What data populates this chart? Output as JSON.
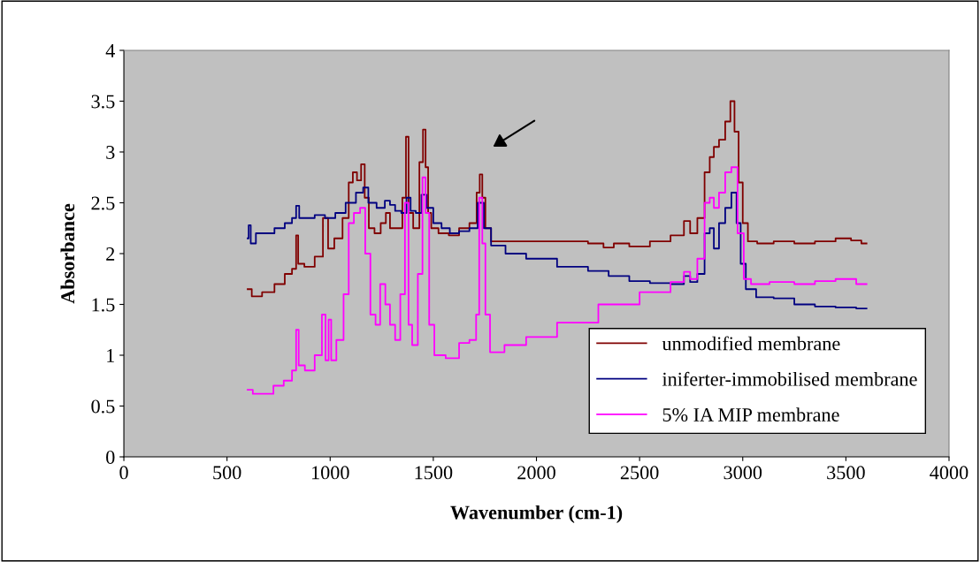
{
  "chart_data": {
    "type": "step",
    "xlabel": "Wavenumber (cm-1)",
    "ylabel": "Absorbance",
    "xlim": [
      0,
      4000
    ],
    "xticks": [
      0,
      500,
      1000,
      1500,
      2000,
      2500,
      3000,
      3500,
      4000
    ],
    "ylim": [
      0,
      4
    ],
    "yticks": [
      0,
      0.5,
      1,
      1.5,
      2,
      2.5,
      3,
      3.5,
      4
    ],
    "grid": false,
    "legend": "bottom right",
    "series": [
      {
        "name": "unmodified membrane",
        "color": "#800000",
        "x": [
          600,
          640,
          700,
          760,
          800,
          830,
          840,
          850,
          900,
          950,
          980,
          1000,
          1040,
          1080,
          1100,
          1120,
          1140,
          1160,
          1175,
          1200,
          1230,
          1260,
          1280,
          1300,
          1340,
          1360,
          1375,
          1385,
          1420,
          1445,
          1455,
          1470,
          1480,
          1500,
          1550,
          1600,
          1650,
          1700,
          1720,
          1730,
          1745,
          1760,
          1800,
          1900,
          2000,
          2200,
          2300,
          2350,
          2400,
          2500,
          2600,
          2700,
          2730,
          2760,
          2800,
          2830,
          2850,
          2870,
          2900,
          2930,
          2950,
          2970,
          2990,
          3010,
          3040,
          3100,
          3200,
          3300,
          3400,
          3500,
          3550,
          3600
        ],
        "values": [
          1.65,
          1.58,
          1.62,
          1.7,
          1.8,
          1.85,
          2.18,
          1.9,
          1.87,
          1.97,
          2.35,
          2.05,
          2.15,
          2.35,
          2.7,
          2.8,
          2.72,
          2.88,
          2.55,
          2.25,
          2.2,
          2.3,
          2.4,
          2.25,
          2.25,
          2.55,
          3.15,
          2.4,
          2.25,
          2.9,
          3.22,
          2.85,
          2.4,
          2.25,
          2.2,
          2.18,
          2.25,
          2.3,
          2.6,
          2.78,
          2.55,
          2.25,
          2.12,
          2.12,
          2.12,
          2.12,
          2.1,
          2.06,
          2.1,
          2.07,
          2.12,
          2.18,
          2.32,
          2.2,
          2.35,
          2.8,
          2.95,
          3.05,
          3.12,
          3.3,
          3.5,
          3.2,
          2.7,
          2.3,
          2.12,
          2.1,
          2.12,
          2.1,
          2.12,
          2.15,
          2.13,
          2.1
        ]
      },
      {
        "name": "iniferter-immobilised membrane",
        "color": "#000080",
        "x": [
          600,
          610,
          620,
          660,
          700,
          760,
          800,
          830,
          840,
          860,
          900,
          950,
          1000,
          1050,
          1100,
          1150,
          1170,
          1200,
          1250,
          1280,
          1300,
          1330,
          1360,
          1380,
          1400,
          1430,
          1455,
          1480,
          1520,
          1560,
          1600,
          1650,
          1700,
          1730,
          1760,
          1800,
          1900,
          2000,
          2200,
          2300,
          2400,
          2500,
          2600,
          2700,
          2730,
          2760,
          2800,
          2830,
          2850,
          2870,
          2900,
          2930,
          2960,
          2980,
          3000,
          3030,
          3100,
          3200,
          3300,
          3400,
          3500,
          3600
        ],
        "values": [
          2.15,
          2.28,
          2.1,
          2.2,
          2.2,
          2.25,
          2.3,
          2.35,
          2.47,
          2.35,
          2.35,
          2.38,
          2.35,
          2.4,
          2.5,
          2.6,
          2.65,
          2.5,
          2.45,
          2.52,
          2.48,
          2.42,
          2.4,
          2.55,
          2.42,
          2.4,
          2.58,
          2.45,
          2.3,
          2.25,
          2.2,
          2.22,
          2.25,
          2.5,
          2.25,
          2.08,
          2.0,
          1.95,
          1.87,
          1.83,
          1.78,
          1.73,
          1.71,
          1.7,
          1.78,
          1.72,
          1.8,
          2.2,
          2.25,
          2.05,
          2.3,
          2.45,
          2.6,
          2.3,
          1.9,
          1.65,
          1.57,
          1.56,
          1.5,
          1.48,
          1.47,
          1.46
        ]
      },
      {
        "name": "5% IA MIP membrane",
        "color": "#ff00ff",
        "x": [
          600,
          650,
          700,
          750,
          800,
          830,
          840,
          855,
          900,
          950,
          970,
          985,
          1000,
          1010,
          1050,
          1080,
          1100,
          1130,
          1160,
          1180,
          1210,
          1230,
          1255,
          1280,
          1300,
          1330,
          1350,
          1375,
          1385,
          1410,
          1440,
          1455,
          1470,
          1490,
          1520,
          1600,
          1650,
          1700,
          1715,
          1730,
          1745,
          1760,
          1790,
          1900,
          2000,
          2200,
          2400,
          2600,
          2700,
          2730,
          2760,
          2800,
          2830,
          2850,
          2870,
          2900,
          2930,
          2960,
          2990,
          3020,
          3060,
          3200,
          3300,
          3400,
          3500,
          3600
        ],
        "values": [
          0.66,
          0.62,
          0.62,
          0.7,
          0.75,
          0.85,
          1.25,
          0.9,
          0.85,
          1.0,
          1.4,
          0.95,
          1.35,
          0.95,
          1.15,
          1.6,
          2.3,
          2.4,
          2.45,
          2.0,
          1.4,
          1.3,
          1.7,
          1.5,
          1.3,
          1.15,
          1.6,
          2.5,
          1.3,
          1.1,
          1.8,
          2.75,
          2.4,
          1.3,
          1.0,
          0.97,
          1.12,
          1.15,
          1.4,
          2.55,
          2.1,
          1.4,
          1.03,
          1.1,
          1.18,
          1.32,
          1.5,
          1.62,
          1.72,
          1.82,
          1.75,
          1.95,
          2.5,
          2.55,
          2.45,
          2.6,
          2.8,
          2.85,
          2.2,
          1.75,
          1.7,
          1.72,
          1.7,
          1.73,
          1.75,
          1.7
        ]
      }
    ]
  }
}
